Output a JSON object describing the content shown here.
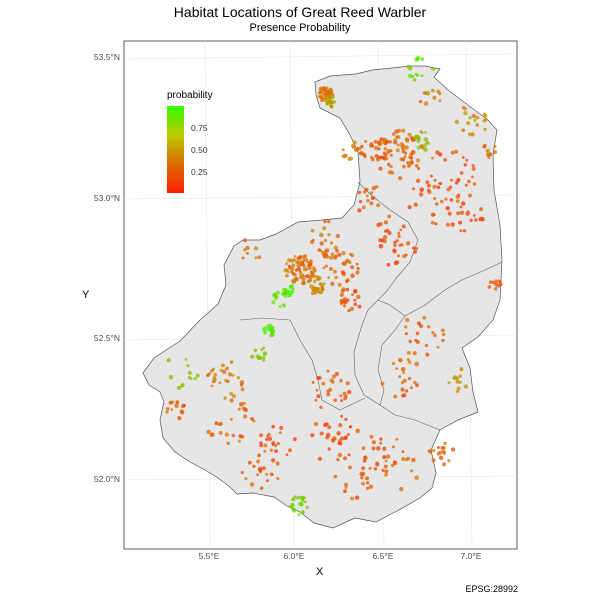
{
  "chart_data": {
    "type": "scatter",
    "title": "Habitat Locations of Great Reed Warbler",
    "subtitle": "Presence Probability",
    "xlabel": "X",
    "ylabel": "Y",
    "caption": "EPSG:28992",
    "x_ticks": [
      "5.5°E",
      "6.0°E",
      "6.5°E",
      "7.0°E"
    ],
    "y_ticks": [
      "53.5°N",
      "53.0°N",
      "52.5°N",
      "52.0°N"
    ],
    "xlim": [
      5.0,
      7.25
    ],
    "ylim": [
      51.75,
      53.55
    ],
    "grid": true,
    "legend": {
      "title": "probability",
      "position": "top-left",
      "labels": [
        "0.75",
        "0.50",
        "0.25"
      ],
      "colors": {
        "high": "#33ff00",
        "mid": "#c8b400",
        "low": "#ff2000"
      }
    }
  }
}
